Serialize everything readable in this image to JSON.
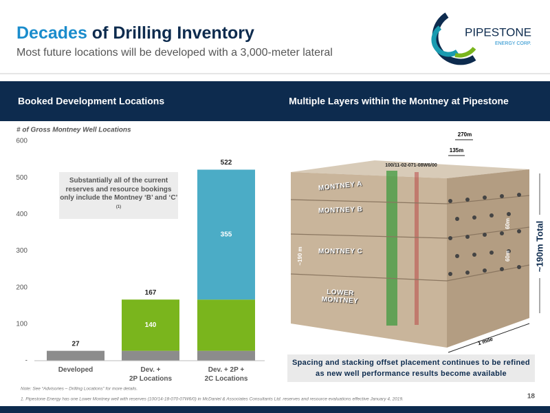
{
  "header": {
    "title_accent": "Decades",
    "title_rest": " of Drilling Inventory",
    "subtitle": "Most future locations will be developed with a 3,000-meter lateral"
  },
  "logo": {
    "name": "PIPESTONE",
    "sub": "ENERGY CORP."
  },
  "sections": [
    "Booked Development Locations",
    "Multiple Layers within the Montney at Pipestone"
  ],
  "chart_data": {
    "type": "stacked_bar",
    "y_label": "# of Gross Montney Well Locations",
    "categories": [
      "Developed",
      "Dev. +\n2P Locations",
      "Dev. + 2P +\n2C Locations"
    ],
    "series": [
      {
        "color": "#8c8c8c",
        "values": [
          27,
          27,
          27
        ]
      },
      {
        "color": "#7ab51d",
        "values": [
          0,
          140,
          140
        ],
        "value_labels": [
          null,
          "140",
          null
        ]
      },
      {
        "color": "#4bacc6",
        "values": [
          0,
          0,
          355
        ],
        "value_labels": [
          null,
          null,
          "355"
        ]
      }
    ],
    "totals": [
      27,
      167,
      522
    ],
    "ylim": [
      0,
      600
    ],
    "yticks": [
      {
        "value": 0,
        "label": "-"
      },
      100,
      200,
      300,
      400,
      500,
      600
    ],
    "annotation": {
      "text": "Substantially all of the current reserves and resource bookings only include the Montney ‘B’ and ‘C’ ",
      "superscript": "(1)"
    }
  },
  "diagram": {
    "layers": [
      "MONTNEY A",
      "MONTNEY B",
      "MONTNEY C",
      "LOWER\nMONTNEY"
    ],
    "well": "100/11-02-071-08W6/00",
    "spacing_outer": "270m",
    "spacing_inner": "135m",
    "thickness_upper": "60m",
    "thickness_lower": "60m",
    "thickness_left": "~190 m",
    "total": "~190m Total",
    "length": "1 mile"
  },
  "caption": "Spacing and stacking offset placement continues to be refined as new well performance results become available",
  "notes": [
    "Note: See “Advisories – Drilling Locations” for more details.",
    "1.    Pipestone Energy has one Lower Montney well with reserves (100/14-18-070-07W6/0) in McDaniel & Associates Consultants Ltd. reserves and resource evaluations effective January 4, 2019."
  ],
  "page_number": "18"
}
